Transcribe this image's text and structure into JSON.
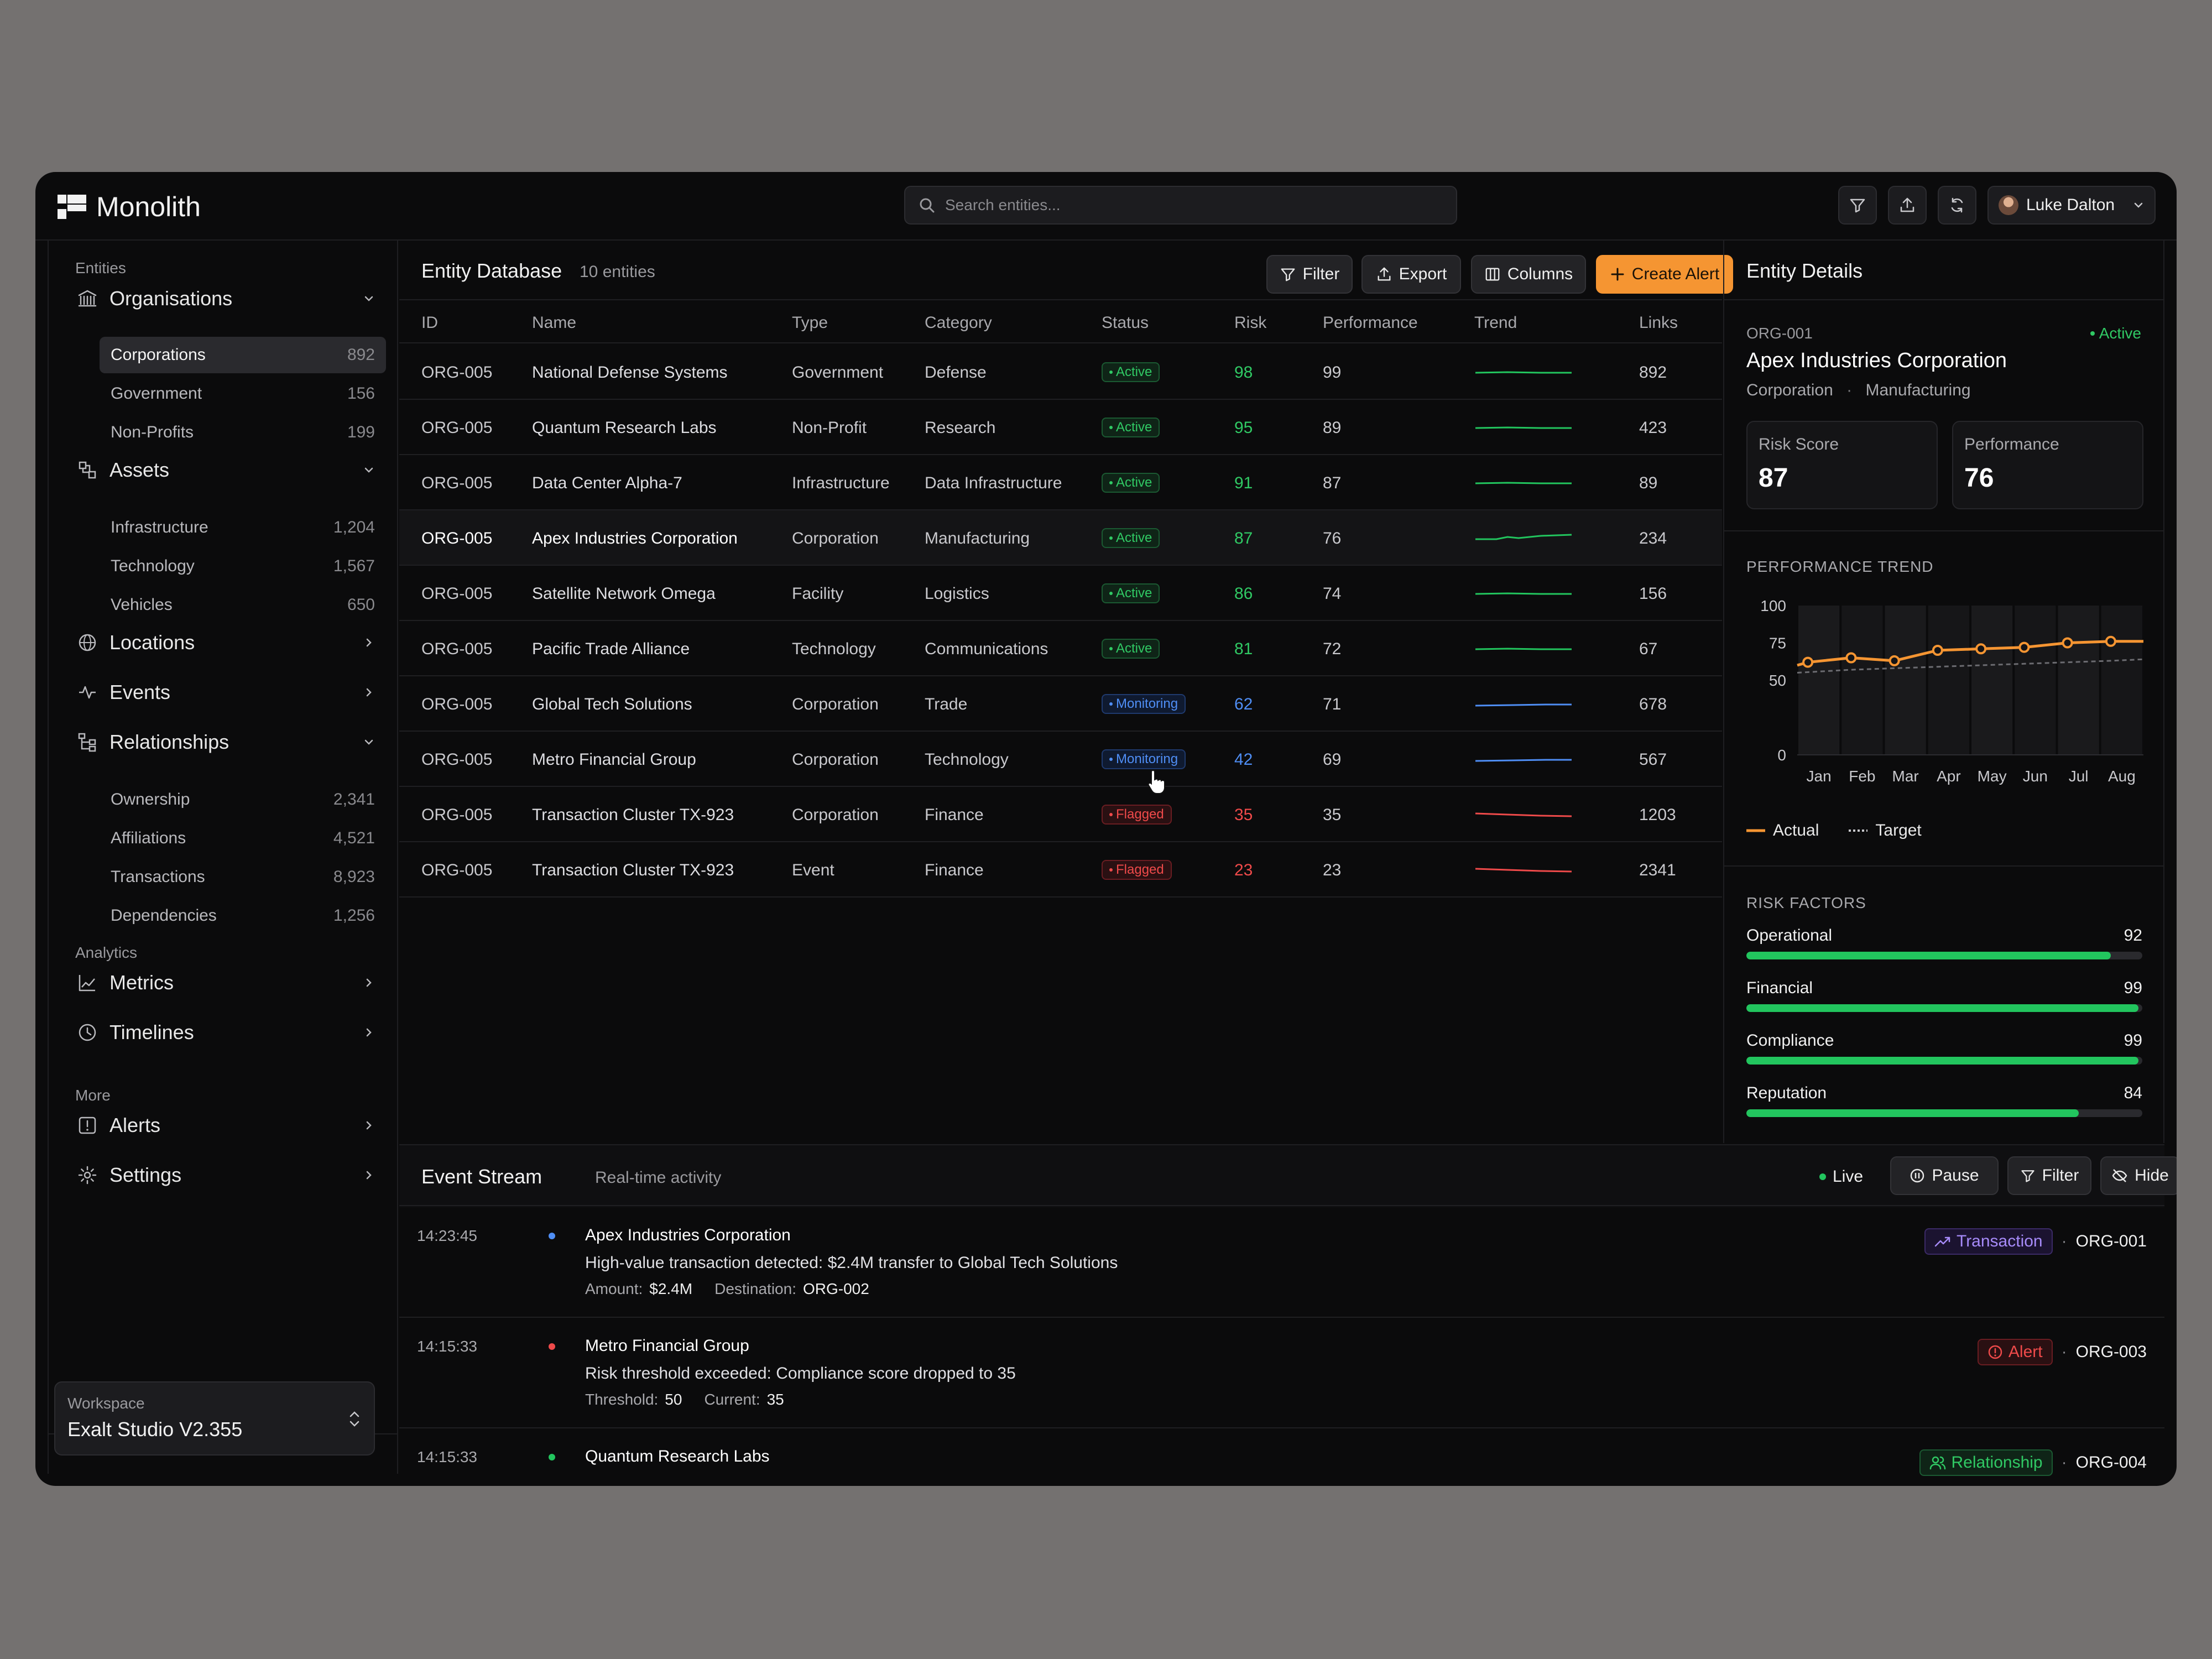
{
  "app": {
    "name": "Monolith"
  },
  "search": {
    "placeholder": "Search entities..."
  },
  "user": {
    "name": "Luke Dalton"
  },
  "sidebar": {
    "section_entities": "Entities",
    "organisations": {
      "label": "Organisations",
      "items": [
        {
          "label": "Corporations",
          "count": "892"
        },
        {
          "label": "Government",
          "count": "156"
        },
        {
          "label": "Non-Profits",
          "count": "199"
        }
      ]
    },
    "assets": {
      "label": "Assets",
      "items": [
        {
          "label": "Infrastructure",
          "count": "1,204"
        },
        {
          "label": "Technology",
          "count": "1,567"
        },
        {
          "label": "Vehicles",
          "count": "650"
        }
      ]
    },
    "locations": {
      "label": "Locations"
    },
    "events": {
      "label": "Events"
    },
    "relationships": {
      "label": "Relationships",
      "items": [
        {
          "label": "Ownership",
          "count": "2,341"
        },
        {
          "label": "Affiliations",
          "count": "4,521"
        },
        {
          "label": "Transactions",
          "count": "8,923"
        },
        {
          "label": "Dependencies",
          "count": "1,256"
        }
      ]
    },
    "section_analytics": "Analytics",
    "metrics": {
      "label": "Metrics"
    },
    "timelines": {
      "label": "Timelines"
    },
    "section_more": "More",
    "alerts": {
      "label": "Alerts"
    },
    "settings": {
      "label": "Settings"
    },
    "workspace": {
      "label": "Workspace",
      "name": "Exalt Studio V2.355"
    }
  },
  "table": {
    "title": "Entity Database",
    "count": "10 entities",
    "buttons": {
      "filter": "Filter",
      "export": "Export",
      "columns": "Columns",
      "create_alert": "Create Alert"
    },
    "columns": [
      "ID",
      "Name",
      "Type",
      "Category",
      "Status",
      "Risk",
      "Performance",
      "Trend",
      "Links"
    ],
    "rows": [
      {
        "id": "ORG-005",
        "name": "National Defense Systems",
        "type": "Government",
        "category": "Defense",
        "status": "Active",
        "risk": "98",
        "performance": "99",
        "links": "892"
      },
      {
        "id": "ORG-005",
        "name": "Quantum Research Labs",
        "type": "Non-Profit",
        "category": "Research",
        "status": "Active",
        "risk": "95",
        "performance": "89",
        "links": "423"
      },
      {
        "id": "ORG-005",
        "name": "Data Center Alpha-7",
        "type": "Infrastructure",
        "category": "Data Infrastructure",
        "status": "Active",
        "risk": "91",
        "performance": "87",
        "links": "89"
      },
      {
        "id": "ORG-005",
        "name": "Apex Industries Corporation",
        "type": "Corporation",
        "category": "Manufacturing",
        "status": "Active",
        "risk": "87",
        "performance": "76",
        "links": "234"
      },
      {
        "id": "ORG-005",
        "name": "Satellite Network Omega",
        "type": "Facility",
        "category": "Logistics",
        "status": "Active",
        "risk": "86",
        "performance": "74",
        "links": "156"
      },
      {
        "id": "ORG-005",
        "name": "Pacific Trade Alliance",
        "type": "Technology",
        "category": "Communications",
        "status": "Active",
        "risk": "81",
        "performance": "72",
        "links": "67"
      },
      {
        "id": "ORG-005",
        "name": "Global Tech Solutions",
        "type": "Corporation",
        "category": "Trade",
        "status": "Monitoring",
        "risk": "62",
        "performance": "71",
        "links": "678"
      },
      {
        "id": "ORG-005",
        "name": "Metro Financial Group",
        "type": "Corporation",
        "category": "Technology",
        "status": "Monitoring",
        "risk": "42",
        "performance": "69",
        "links": "567"
      },
      {
        "id": "ORG-005",
        "name": "Transaction Cluster TX-923",
        "type": "Corporation",
        "category": "Finance",
        "status": "Flagged",
        "risk": "35",
        "performance": "35",
        "links": "1203"
      },
      {
        "id": "ORG-005",
        "name": "Transaction Cluster TX-923",
        "type": "Event",
        "category": "Finance",
        "status": "Flagged",
        "risk": "23",
        "performance": "23",
        "links": "2341"
      }
    ]
  },
  "details": {
    "title": "Entity Details",
    "id": "ORG-001",
    "status": "Active",
    "name": "Apex Industries Corporation",
    "type": "Corporation",
    "category": "Manufacturing",
    "risk_label": "Risk Score",
    "risk_value": "87",
    "perf_label": "Performance",
    "perf_value": "76",
    "trend_title": "PERFORMANCE TREND",
    "legend_actual": "Actual",
    "legend_target": "Target",
    "risk_factors_title": "RISK FACTORS",
    "risk_factors": [
      {
        "label": "Operational",
        "value": "92"
      },
      {
        "label": "Financial",
        "value": "99"
      },
      {
        "label": "Compliance",
        "value": "99"
      },
      {
        "label": "Reputation",
        "value": "84"
      }
    ]
  },
  "chart_data": {
    "type": "line",
    "categories": [
      "Jan",
      "Feb",
      "Mar",
      "Apr",
      "May",
      "Jun",
      "Jul",
      "Aug"
    ],
    "series": [
      {
        "name": "Actual",
        "values": [
          62,
          65,
          63,
          70,
          71,
          72,
          75,
          76
        ]
      },
      {
        "name": "Target",
        "values": [
          55,
          57,
          58,
          59,
          60,
          61,
          62,
          63
        ]
      }
    ],
    "yticks": [
      "100",
      "75",
      "50",
      "0"
    ],
    "ylim": [
      0,
      100
    ],
    "colors": {
      "actual": "#f59532",
      "target": "#6b6b70"
    }
  },
  "events": {
    "title": "Event Stream",
    "subtitle": "Real-time activity",
    "live": "Live",
    "buttons": {
      "pause": "Pause",
      "filter": "Filter",
      "hide": "Hide"
    },
    "items": [
      {
        "time": "14:23:45",
        "entity": "Apex Industries Corporation",
        "message": "High-value transaction detected: $2.4M transfer to Global Tech Solutions",
        "d1_label": "Amount:",
        "d1_value": "$2.4M",
        "d2_label": "Destination:",
        "d2_value": "ORG-002",
        "tag": "Transaction",
        "org": "ORG-001"
      },
      {
        "time": "14:15:33",
        "entity": "Metro Financial Group",
        "message": "Risk threshold exceeded: Compliance score dropped to 35",
        "d1_label": "Threshold:",
        "d1_value": "50",
        "d2_label": "Current:",
        "d2_value": "35",
        "tag": "Alert",
        "org": "ORG-003"
      },
      {
        "time": "14:15:33",
        "entity": "Quantum Research Labs",
        "tag": "Relationship",
        "org": "ORG-004"
      }
    ]
  },
  "colors": {
    "accent": "#f59532",
    "active": "#30c964",
    "monitoring": "#4f8ef5",
    "flagged": "#ef4a4a"
  }
}
